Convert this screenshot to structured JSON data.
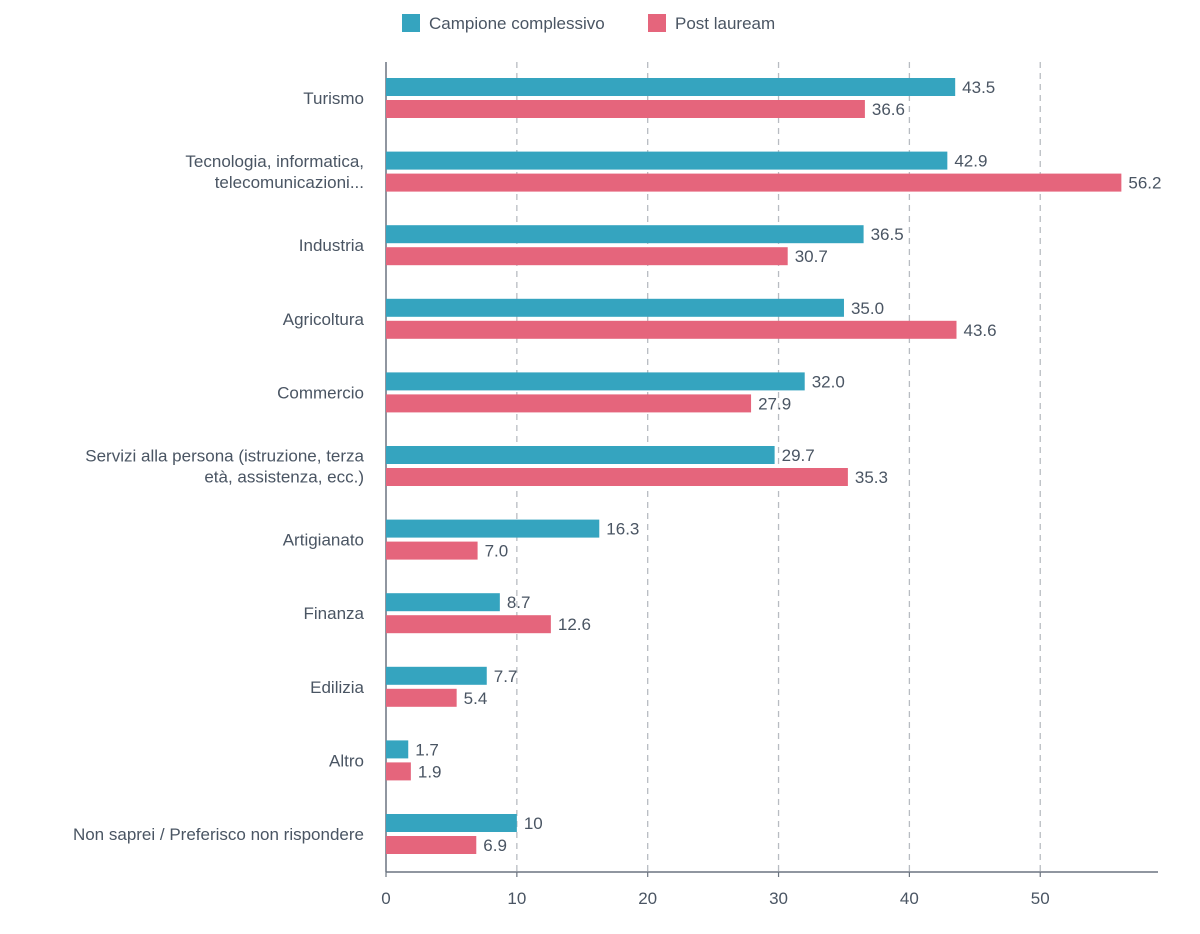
{
  "chart_data": {
    "type": "bar",
    "orientation": "horizontal",
    "categories": [
      "Turismo",
      "Tecnologia, informatica, telecomunicazioni...",
      "Industria",
      "Agricoltura",
      "Commercio",
      "Servizi alla persona (istruzione, terza età, assistenza, ecc.)",
      "Artigianato",
      "Finanza",
      "Edilizia",
      "Altro",
      "Non saprei / Preferisco non rispondere"
    ],
    "category_lines": [
      [
        "Turismo"
      ],
      [
        "Tecnologia, informatica,",
        "telecomunicazioni..."
      ],
      [
        "Industria"
      ],
      [
        "Agricoltura"
      ],
      [
        "Commercio"
      ],
      [
        "Servizi alla persona (istruzione, terza",
        "età, assistenza, ecc.)"
      ],
      [
        "Artigianato"
      ],
      [
        "Finanza"
      ],
      [
        "Edilizia"
      ],
      [
        "Altro"
      ],
      [
        "Non saprei / Preferisco non rispondere"
      ]
    ],
    "series": [
      {
        "name": "Campione complessivo",
        "color": "#35a4bf",
        "values": [
          43.5,
          42.9,
          36.5,
          35.0,
          32.0,
          29.7,
          16.3,
          8.7,
          7.7,
          1.7,
          10
        ],
        "labels": [
          "43.5",
          "42.9",
          "36.5",
          "35.0",
          "32.0",
          "29.7",
          "16.3",
          "8.7",
          "7.7",
          "1.7",
          "10"
        ]
      },
      {
        "name": "Post lauream",
        "color": "#e5657c",
        "values": [
          36.6,
          56.2,
          30.7,
          43.6,
          27.9,
          35.3,
          7.0,
          12.6,
          5.4,
          1.9,
          6.9
        ],
        "labels": [
          "36.6",
          "56.2",
          "30.7",
          "43.6",
          "27.9",
          "35.3",
          "7.0",
          "12.6",
          "5.4",
          "1.9",
          "6.9"
        ]
      }
    ],
    "xlim": [
      0,
      59
    ],
    "xticks": [
      0,
      10,
      20,
      30,
      40,
      50
    ],
    "xlabel": "",
    "ylabel": "",
    "grid": "vertical dashed",
    "legend_position": "top-center"
  }
}
